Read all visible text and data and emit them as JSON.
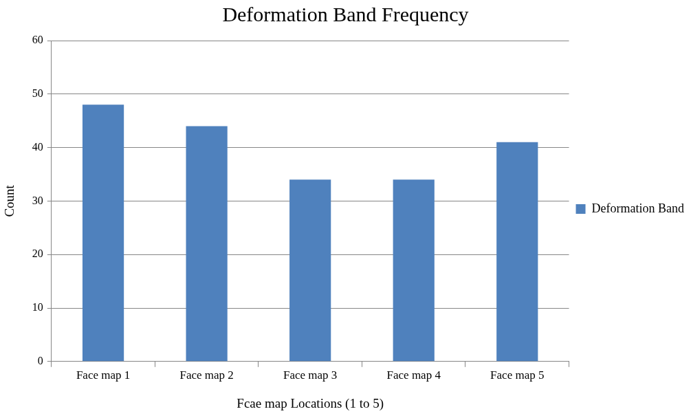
{
  "chart_data": {
    "type": "bar",
    "title": "Deformation Band Frequency",
    "xlabel": "Fcae map Locations (1 to 5)",
    "ylabel": "Count",
    "categories": [
      "Face map 1",
      "Face map 2",
      "Face map 3",
      "Face map 4",
      "Face map 5"
    ],
    "series": [
      {
        "name": "Deformation Band",
        "color": "#4f81bd",
        "values": [
          48,
          44,
          34,
          34,
          41
        ]
      }
    ],
    "ylim": [
      0,
      60
    ],
    "yticks": [
      0,
      10,
      20,
      30,
      40,
      50,
      60
    ],
    "grid": "y",
    "legend": "right"
  }
}
